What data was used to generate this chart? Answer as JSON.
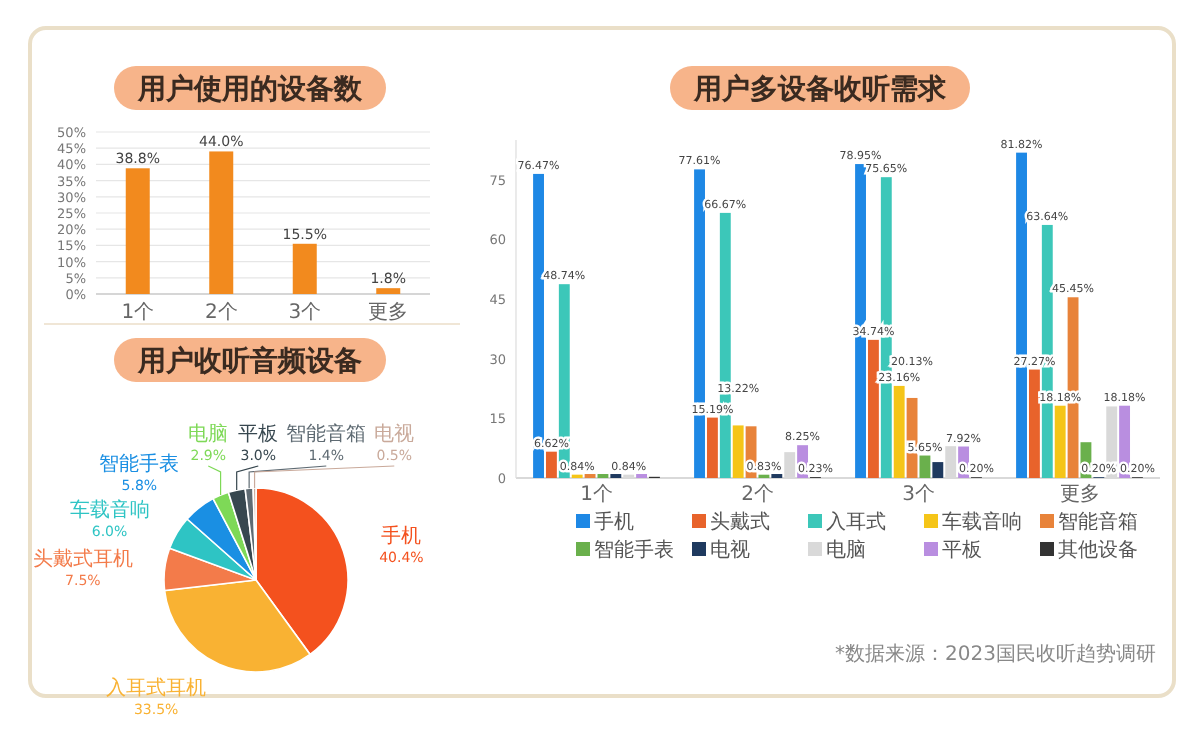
{
  "chart_data": [
    {
      "type": "bar",
      "title": "用户使用的设备数",
      "categories": [
        "1个",
        "2个",
        "3个",
        "更多"
      ],
      "values": [
        38.8,
        44.0,
        15.5,
        1.8
      ],
      "value_labels": [
        "38.8%",
        "44.0%",
        "15.5%",
        "1.8%"
      ],
      "color": "#f28a1e",
      "ylim": [
        0,
        50
      ],
      "yticks": [
        {
          "value": 0,
          "label": "0%"
        },
        {
          "value": 5,
          "label": "5%"
        },
        {
          "value": 10,
          "label": "10%"
        },
        {
          "value": 15,
          "label": "15%"
        },
        {
          "value": 20,
          "label": "20%"
        },
        {
          "value": 25,
          "label": "25%"
        },
        {
          "value": 30,
          "label": "30%"
        },
        {
          "value": 35,
          "label": "35%"
        },
        {
          "value": 40,
          "label": "40%"
        },
        {
          "value": 45,
          "label": "45%"
        },
        {
          "value": 50,
          "label": "50%"
        }
      ],
      "grid": "y"
    },
    {
      "type": "pie",
      "title": "用户收听音频设备",
      "categories": [
        "手机",
        "入耳式耳机",
        "头戴式耳机",
        "车载音响",
        "智能手表",
        "电脑",
        "平板",
        "智能音箱",
        "电视"
      ],
      "values": [
        40.4,
        33.5,
        7.5,
        6.0,
        5.8,
        2.9,
        3.0,
        1.4,
        0.5
      ],
      "value_labels": [
        "40.4%",
        "33.5%",
        "7.5%",
        "6.0%",
        "5.8%",
        "2.9%",
        "3.0%",
        "1.4%",
        "0.5%"
      ],
      "colors": [
        "#f4511e",
        "#f9b233",
        "#f37b4a",
        "#2ec4c4",
        "#1a8fe3",
        "#7ed957",
        "#37474f",
        "#5f6b73",
        "#c9a99a"
      ]
    },
    {
      "type": "bar",
      "title": "用户多设备收听需求",
      "categories": [
        "1个",
        "2个",
        "3个",
        "更多"
      ],
      "ylim": [
        0,
        85
      ],
      "yticks": [
        0,
        15,
        30,
        45,
        60,
        75
      ],
      "legend": "bottom",
      "annotations": [
        "*数据来源：2023国民收听趋势调研"
      ],
      "series": [
        {
          "name": "手机",
          "color": "#1e88e5",
          "values": [
            76.47,
            77.61,
            78.95,
            81.82
          ],
          "value_labels": [
            "76.47%",
            "77.61%",
            "78.95%",
            "81.82%"
          ]
        },
        {
          "name": "头戴式",
          "color": "#e8632b",
          "values": [
            6.62,
            15.19,
            34.74,
            27.27
          ],
          "value_labels": [
            "6.62%",
            "15.19%",
            "34.74%",
            "27.27%"
          ]
        },
        {
          "name": "入耳式",
          "color": "#3cc7b9",
          "values": [
            48.74,
            66.67,
            75.65,
            63.64
          ],
          "value_labels": [
            "48.74%",
            "66.67%",
            "75.65%",
            "63.64%"
          ]
        },
        {
          "name": "车载音响",
          "color": "#f5c518",
          "values": [
            0.84,
            13.22,
            23.16,
            18.18
          ],
          "value_labels": [
            "0.84%",
            "13.22%",
            "23.16%",
            "18.18%"
          ]
        },
        {
          "name": "智能音箱",
          "color": "#e8833a",
          "values": [
            1,
            13,
            20.13,
            45.45
          ],
          "value_labels": [
            null,
            null,
            "20.13%",
            "45.45%"
          ]
        },
        {
          "name": "智能手表",
          "color": "#6ab04c",
          "values": [
            1,
            0.83,
            5.65,
            9
          ],
          "value_labels": [
            null,
            "0.83%",
            "5.65%",
            null
          ]
        },
        {
          "name": "电视",
          "color": "#1f3a5f",
          "values": [
            1,
            1,
            4,
            0.2
          ],
          "value_labels": [
            null,
            null,
            null,
            "0.20%"
          ]
        },
        {
          "name": "电脑",
          "color": "#d9d9d9",
          "values": [
            0.84,
            6.5,
            8,
            18
          ],
          "value_labels": [
            "0.84%",
            null,
            null,
            null
          ]
        },
        {
          "name": "平板",
          "color": "#b98ee0",
          "values": [
            1,
            8.25,
            7.92,
            18.18
          ],
          "value_labels": [
            null,
            "8.25%",
            "7.92%",
            "18.18%"
          ]
        },
        {
          "name": "其他设备",
          "color": "#333333",
          "values": [
            0.3,
            0.23,
            0.2,
            0.2
          ],
          "value_labels": [
            null,
            "0.23%",
            "0.20%",
            "0.20%"
          ]
        }
      ]
    }
  ]
}
